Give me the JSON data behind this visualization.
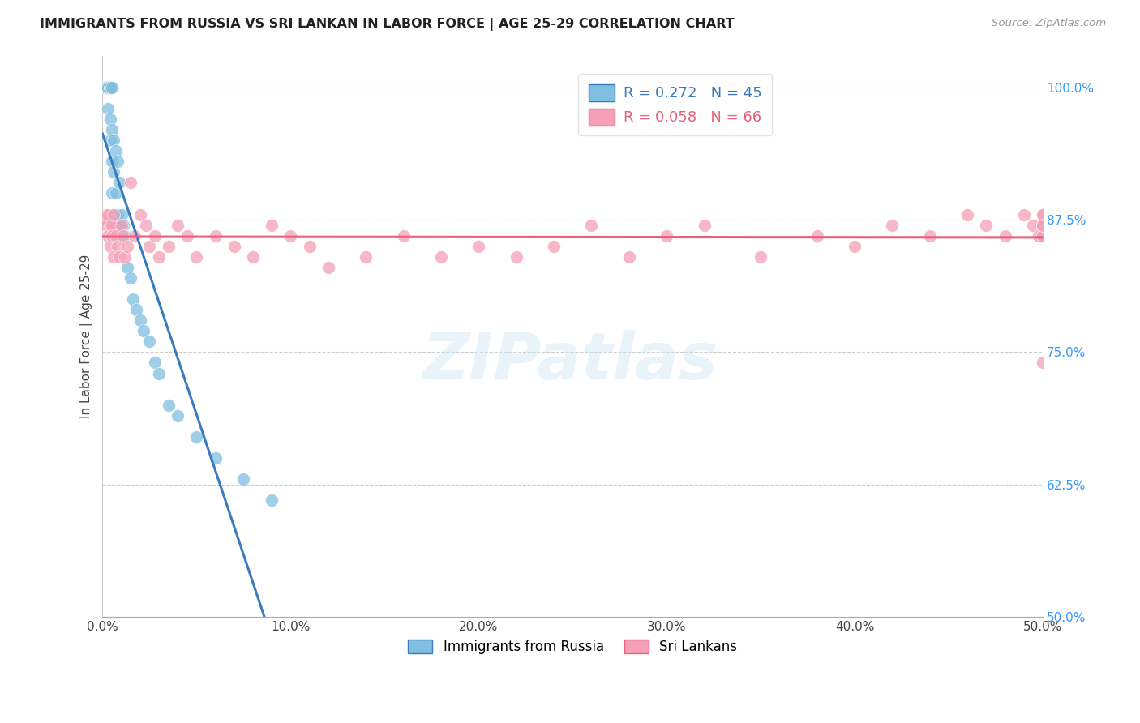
{
  "title": "IMMIGRANTS FROM RUSSIA VS SRI LANKAN IN LABOR FORCE | AGE 25-29 CORRELATION CHART",
  "source": "Source: ZipAtlas.com",
  "ylabel": "In Labor Force | Age 25-29",
  "xlim": [
    0.0,
    0.5
  ],
  "ylim": [
    0.5,
    1.03
  ],
  "xticks": [
    0.0,
    0.1,
    0.2,
    0.3,
    0.4,
    0.5
  ],
  "xticklabels": [
    "0.0%",
    "10.0%",
    "20.0%",
    "30.0%",
    "40.0%",
    "50.0%"
  ],
  "yticks": [
    0.5,
    0.625,
    0.75,
    0.875,
    1.0
  ],
  "yticklabels": [
    "50.0%",
    "62.5%",
    "75.0%",
    "87.5%",
    "100.0%"
  ],
  "russia_color": "#7fbfdf",
  "srilanka_color": "#f4a0b8",
  "russia_line_color": "#3a7abf",
  "srilanka_line_color": "#e8607a",
  "russia_R": 0.272,
  "russia_N": 45,
  "srilanka_R": 0.058,
  "srilanka_N": 66,
  "russia_x": [
    0.001,
    0.001,
    0.002,
    0.002,
    0.002,
    0.003,
    0.003,
    0.003,
    0.003,
    0.004,
    0.004,
    0.004,
    0.004,
    0.005,
    0.005,
    0.005,
    0.005,
    0.006,
    0.006,
    0.006,
    0.007,
    0.007,
    0.007,
    0.008,
    0.008,
    0.009,
    0.009,
    0.01,
    0.011,
    0.012,
    0.013,
    0.015,
    0.016,
    0.018,
    0.02,
    0.022,
    0.025,
    0.028,
    0.03,
    0.035,
    0.04,
    0.05,
    0.06,
    0.075,
    0.09
  ],
  "russia_y": [
    1.0,
    1.0,
    1.0,
    1.0,
    1.0,
    1.0,
    1.0,
    0.98,
    1.0,
    1.0,
    1.0,
    0.97,
    0.95,
    1.0,
    0.96,
    0.93,
    0.9,
    0.95,
    0.92,
    0.88,
    0.94,
    0.9,
    0.87,
    0.93,
    0.88,
    0.91,
    0.87,
    0.88,
    0.87,
    0.86,
    0.83,
    0.82,
    0.8,
    0.79,
    0.78,
    0.77,
    0.76,
    0.74,
    0.73,
    0.7,
    0.69,
    0.67,
    0.65,
    0.63,
    0.61
  ],
  "srilanka_x": [
    0.001,
    0.002,
    0.002,
    0.003,
    0.003,
    0.004,
    0.004,
    0.005,
    0.005,
    0.006,
    0.006,
    0.007,
    0.008,
    0.009,
    0.01,
    0.011,
    0.012,
    0.013,
    0.015,
    0.017,
    0.02,
    0.023,
    0.025,
    0.028,
    0.03,
    0.035,
    0.04,
    0.045,
    0.05,
    0.06,
    0.07,
    0.08,
    0.09,
    0.1,
    0.11,
    0.12,
    0.14,
    0.16,
    0.18,
    0.2,
    0.22,
    0.24,
    0.26,
    0.28,
    0.3,
    0.32,
    0.35,
    0.38,
    0.4,
    0.42,
    0.44,
    0.46,
    0.47,
    0.48,
    0.49,
    0.495,
    0.498,
    0.5,
    0.5,
    0.5,
    0.5,
    0.5,
    0.5,
    0.5,
    0.5,
    0.5
  ],
  "srilanka_y": [
    0.875,
    0.88,
    0.87,
    0.88,
    0.86,
    0.87,
    0.85,
    0.87,
    0.86,
    0.88,
    0.84,
    0.86,
    0.85,
    0.84,
    0.87,
    0.86,
    0.84,
    0.85,
    0.91,
    0.86,
    0.88,
    0.87,
    0.85,
    0.86,
    0.84,
    0.85,
    0.87,
    0.86,
    0.84,
    0.86,
    0.85,
    0.84,
    0.87,
    0.86,
    0.85,
    0.83,
    0.84,
    0.86,
    0.84,
    0.85,
    0.84,
    0.85,
    0.87,
    0.84,
    0.86,
    0.87,
    0.84,
    0.86,
    0.85,
    0.87,
    0.86,
    0.88,
    0.87,
    0.86,
    0.88,
    0.87,
    0.86,
    0.87,
    0.88,
    0.87,
    0.86,
    0.86,
    0.87,
    0.88,
    0.87,
    0.74
  ]
}
